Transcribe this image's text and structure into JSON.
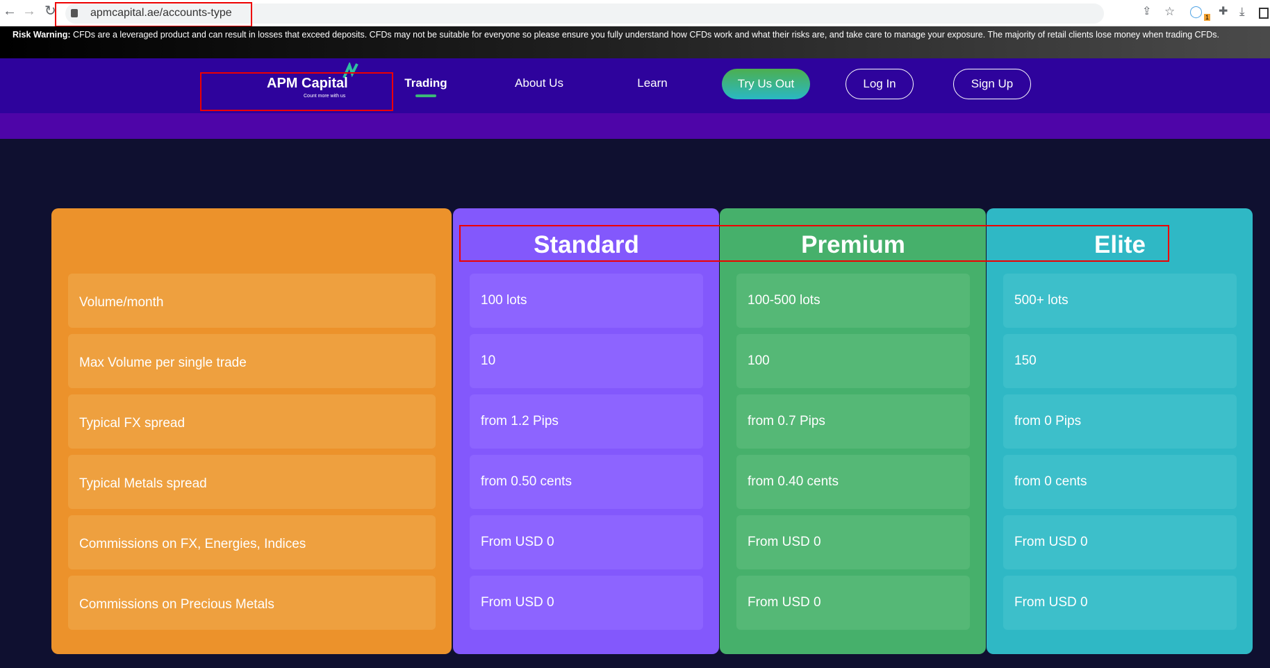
{
  "browser": {
    "url": "apmcapital.ae/accounts-type",
    "extension_badge": "1"
  },
  "risk_warning": {
    "label": "Risk Warning:",
    "text": " CFDs are a leveraged product and can result in losses that exceed deposits. CFDs may not be suitable for everyone so please ensure you fully understand how CFDs work and what their risks are, and take care to manage your exposure. The majority of retail clients lose money when trading CFDs."
  },
  "nav": {
    "logo": "APM Capital",
    "tagline": "Count more with us",
    "links": [
      "Trading",
      "About Us",
      "Learn"
    ],
    "try": "Try Us Out",
    "login": "Log In",
    "signup": "Sign Up"
  },
  "table": {
    "rows": [
      "Volume/month",
      "Max Volume per single trade",
      "Typical FX spread",
      "Typical Metals spread",
      "Commissions on FX, Energies, Indices",
      "Commissions on Precious Metals"
    ],
    "plans": [
      {
        "name": "Standard",
        "color": "#8358fc",
        "cell": "#8d64ff",
        "values": [
          "100 lots",
          "10",
          "from 1.2 Pips",
          "from 0.50 cents",
          "From USD 0",
          "From USD 0"
        ]
      },
      {
        "name": "Premium",
        "color": "#46b06b",
        "cell": "#55b876",
        "values": [
          "100-500 lots",
          "100",
          "from 0.7 Pips",
          "from 0.40 cents",
          "From USD 0",
          "From USD 0"
        ]
      },
      {
        "name": "Elite",
        "color": "#2fb8c5",
        "cell": "#3dbfca",
        "values": [
          "500+ lots",
          "150",
          "from 0 Pips",
          "from 0 cents",
          "From USD 0",
          "From USD 0"
        ]
      }
    ]
  }
}
